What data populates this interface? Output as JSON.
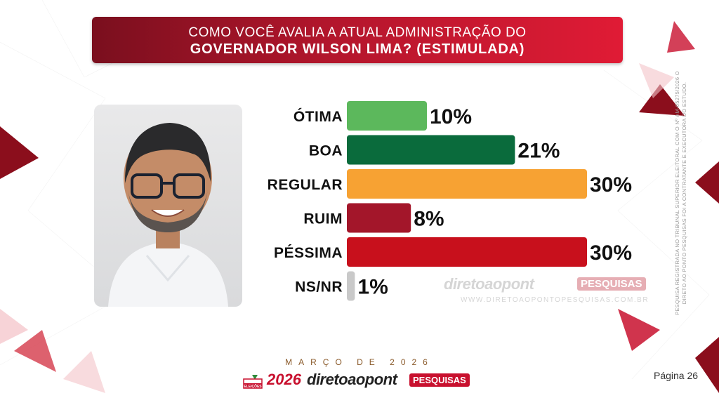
{
  "title": {
    "line1": "COMO VOCÊ AVALIA A ATUAL ADMINISTRAÇÃO DO",
    "line2": "GOVERNADOR WILSON LIMA? (ESTIMULADA)"
  },
  "chart_data": {
    "type": "bar",
    "orientation": "horizontal",
    "categories": [
      "ÓTIMA",
      "BOA",
      "REGULAR",
      "RUIM",
      "PÉSSIMA",
      "NS/NR"
    ],
    "values": [
      10,
      21,
      30,
      8,
      30,
      1
    ],
    "value_labels": [
      "10%",
      "21%",
      "30%",
      "8%",
      "30%",
      "1%"
    ],
    "colors": [
      "#5cb85c",
      "#0a6b3c",
      "#f7a233",
      "#a3162a",
      "#c8101c",
      "#c9c9c9"
    ],
    "xlim": [
      0,
      30
    ]
  },
  "watermark": {
    "brand": "diretoaopont",
    "tag": "PESQUISAS",
    "url": "WWW.DIRETOAOPONTOPESQUISAS.COM.BR"
  },
  "side_note": "PESQUISA REGISTRADA NO TRIBUNAL SUPERIOR ELEITORAL COM O Nº AM-05275/2026 O DIRETO AO PONTO PESQUISAS FOI A CONTRATANTE E EXECUTORA DO ESTUDO.",
  "date": "MARÇO DE 2026",
  "footer": {
    "box_label": "ELEIÇÕES",
    "year": "2026",
    "brand": "diretoaopont",
    "tag": "PESQUISAS"
  },
  "page": "Página 26",
  "colors": {
    "accent": "#c8102e",
    "banner_dark": "#7a0f1e"
  },
  "icons": {
    "photo": "person-portrait",
    "ballot": "ballot-box-icon",
    "check": "check-mark-icon"
  }
}
